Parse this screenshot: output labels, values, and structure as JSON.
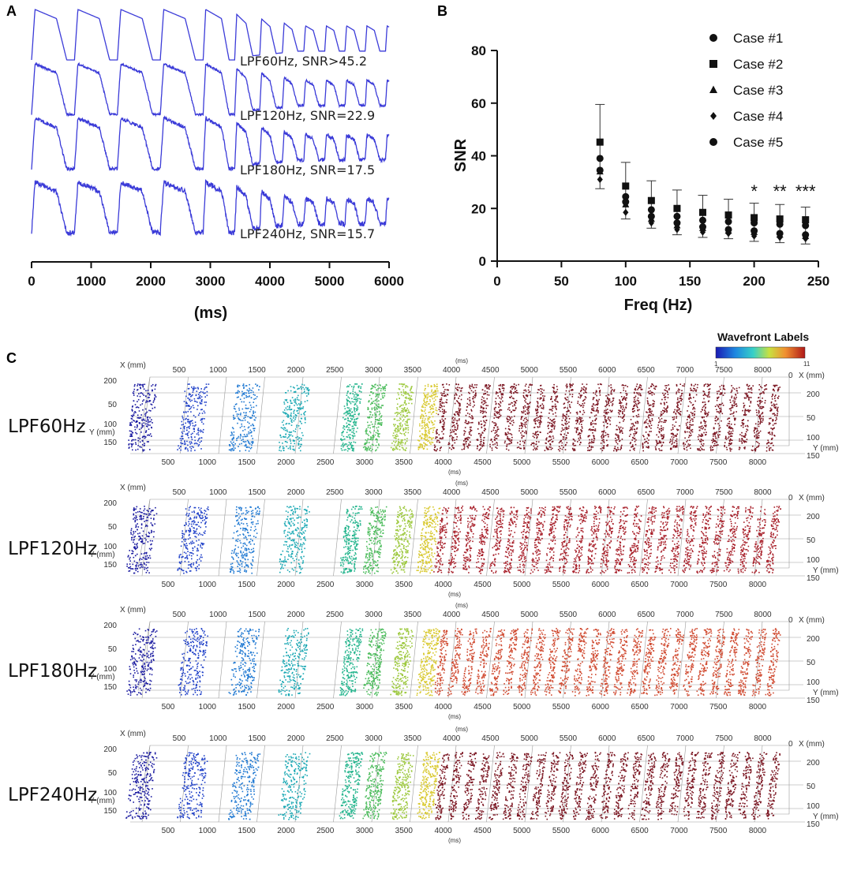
{
  "panels": {
    "a": "A",
    "b": "B",
    "c": "C"
  },
  "chart_data": [
    {
      "type": "line",
      "panel": "A",
      "description_series": [
        "LPF60Hz, SNR>45.2",
        "LPF120Hz, SNR=22.9",
        "LPF180Hz, SNR=17.5",
        "LPF240Hz, SNR=15.7"
      ],
      "trace_labels": [
        "LPF60Hz, SNR>45.2",
        "LPF120Hz, SNR=22.9",
        "LPF180Hz, SNR=17.5",
        "LPF240Hz, SNR=15.7"
      ],
      "noise": [
        0,
        0.04,
        0.07,
        0.1
      ],
      "cycle_ms": [
        720,
        720,
        720,
        720,
        530,
        420,
        380,
        360,
        350,
        340,
        340,
        340,
        340,
        340,
        340,
        340
      ],
      "xticks": [
        0,
        1000,
        2000,
        3000,
        4000,
        5000,
        6000
      ],
      "xlim": [
        0,
        6000
      ],
      "xlabel": "(ms)"
    },
    {
      "type": "scatter",
      "panel": "B",
      "xlabel": "Freq (Hz)",
      "ylabel": "SNR",
      "xlim": [
        0,
        250
      ],
      "ylim": [
        0,
        80
      ],
      "xticks": [
        0,
        50,
        100,
        150,
        200,
        250
      ],
      "yticks": [
        0,
        20,
        40,
        60,
        80
      ],
      "x": [
        80,
        100,
        120,
        140,
        160,
        180,
        200,
        220,
        240
      ],
      "series": [
        {
          "name": "Case #1",
          "marker": "circle",
          "values": [
            39,
            24.5,
            19.5,
            17,
            15.5,
            15,
            14.5,
            14,
            13.5
          ]
        },
        {
          "name": "Case #2",
          "marker": "square",
          "values": [
            45.2,
            28.5,
            23,
            20,
            18.5,
            17.5,
            16.5,
            16,
            15.7
          ]
        },
        {
          "name": "Case #3",
          "marker": "triangle",
          "values": [
            34,
            21.5,
            16,
            13.5,
            12.5,
            11.5,
            11,
            10,
            9.5
          ]
        },
        {
          "name": "Case #4",
          "marker": "diamond",
          "values": [
            31,
            18.5,
            14.5,
            12,
            11,
            10.5,
            9.5,
            9,
            8.5
          ]
        },
        {
          "name": "Case #5",
          "marker": "circle",
          "values": [
            34.5,
            22.5,
            17,
            14.5,
            13,
            12,
            11.5,
            10.5,
            10
          ]
        }
      ],
      "error_upper": [
        59.5,
        37.5,
        30.5,
        27,
        25,
        23.5,
        22,
        21.5,
        20.5
      ],
      "error_lower": [
        27.5,
        16,
        12.5,
        10,
        9,
        8.5,
        7.5,
        7,
        6.5
      ],
      "significance": [
        {
          "x": 200,
          "label": "*"
        },
        {
          "x": 220,
          "label": "**"
        },
        {
          "x": 240,
          "label": "***"
        }
      ]
    }
  ],
  "panel_c": {
    "colorbar_title": "Wavefront Labels",
    "colorbar_min": "1",
    "colorbar_max": "11",
    "axis_x_label": "X (mm)",
    "axis_y_label": "Y (mm)",
    "axis_ms_label": "(ms)",
    "top_ticks": [
      "500",
      "1000",
      "1500",
      "2000",
      "2500",
      "3000",
      "3500",
      "4000",
      "4500",
      "5000",
      "5500",
      "6000",
      "6500",
      "7000",
      "7500",
      "8000"
    ],
    "top_tick_zero": "0",
    "bottom_ticks": [
      "500",
      "1000",
      "1500",
      "2000",
      "2500",
      "3000",
      "3500",
      "4000",
      "4500",
      "5000",
      "5500",
      "6000",
      "6500",
      "7000",
      "7500",
      "8000"
    ],
    "left_y_ticks": [
      "200",
      "50",
      "100",
      "150"
    ],
    "right_y_ticks": [
      "200",
      "50",
      "100",
      "150"
    ],
    "colormap": [
      "#1a1aa0",
      "#1f40c8",
      "#1e78d2",
      "#1aa8b4",
      "#22b48c",
      "#4cbc5c",
      "#9cc83c",
      "#d8c82c",
      "#e09030",
      "#d04a30",
      "#a8202a",
      "#7a1420"
    ],
    "rows": [
      {
        "label": "LPF60Hz",
        "wavefront_centers": [
          0.2,
          0.7,
          1.1,
          1.6,
          2.0,
          2.5,
          3.05,
          3.35
        ],
        "tail_color_index": 11
      },
      {
        "label": "LPF120Hz",
        "wavefront_centers": [
          0.2,
          0.7,
          1.1,
          1.6,
          2.0,
          2.5,
          3.05,
          3.35
        ],
        "tail_color_index": 10
      },
      {
        "label": "LPF180Hz",
        "wavefront_centers": [
          0.2,
          0.7,
          1.1,
          1.6,
          2.0,
          2.5,
          3.05,
          3.35
        ],
        "tail_color_index": 9
      },
      {
        "label": "LPF240Hz",
        "wavefront_centers": [
          0.2,
          0.7,
          1.1,
          1.6,
          2.0,
          2.5,
          3.05,
          3.35
        ],
        "tail_color_index": 11
      }
    ]
  }
}
